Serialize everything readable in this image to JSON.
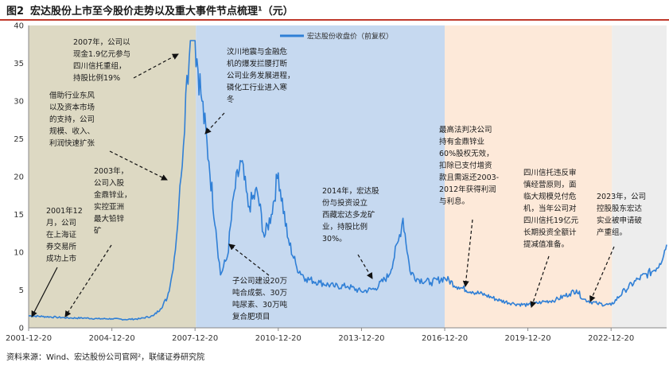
{
  "header": {
    "figure_label": "图2",
    "title": "宏达股份上市至今股价走势以及重大事件节点梳理¹（元）"
  },
  "source": "资料来源：Wind、宏达股份公司官网²，联储证券研究院",
  "chart_data": {
    "type": "line",
    "title": "宏达股份上市至今股价走势以及重大事件节点梳理¹（元）",
    "xlabel": "",
    "ylabel": "",
    "ylim": [
      0,
      40
    ],
    "yticks": [
      0,
      5,
      10,
      15,
      20,
      25,
      30,
      35,
      40
    ],
    "x_ticks": [
      "2001-12-20",
      "2004-12-20",
      "2007-12-20",
      "2010-12-20",
      "2013-12-20",
      "2016-12-20",
      "2019-12-20",
      "2022-12-20"
    ],
    "x_range": [
      "2001-12-20",
      "2024-12-20"
    ],
    "legend_position": "top-right",
    "grid": false,
    "series": [
      {
        "name": "宏达股份收盘价（前复权）",
        "color": "#2f7fd6",
        "x": [
          "2001-12-20",
          "2002-06-20",
          "2002-12-20",
          "2003-06-20",
          "2003-12-20",
          "2004-06-20",
          "2004-12-20",
          "2005-06-20",
          "2005-12-20",
          "2006-06-20",
          "2006-09-20",
          "2006-12-20",
          "2007-02-20",
          "2007-04-20",
          "2007-05-20",
          "2007-06-20",
          "2007-08-20",
          "2007-10-20",
          "2007-12-20",
          "2008-03-20",
          "2008-06-20",
          "2008-09-20",
          "2008-11-20",
          "2009-02-20",
          "2009-05-20",
          "2009-08-20",
          "2009-11-20",
          "2010-03-20",
          "2010-06-20",
          "2010-09-20",
          "2010-12-20",
          "2011-04-20",
          "2011-08-20",
          "2011-12-20",
          "2012-06-20",
          "2012-12-20",
          "2013-06-20",
          "2013-12-20",
          "2014-06-20",
          "2014-12-20",
          "2015-04-20",
          "2015-06-20",
          "2015-09-20",
          "2015-12-20",
          "2016-06-20",
          "2016-12-20",
          "2017-06-20",
          "2017-12-20",
          "2018-06-20",
          "2018-12-20",
          "2019-06-20",
          "2019-12-20",
          "2020-06-20",
          "2020-12-20",
          "2021-06-20",
          "2021-09-20",
          "2021-12-20",
          "2022-06-20",
          "2022-12-20",
          "2023-06-20",
          "2023-12-20",
          "2024-06-20",
          "2024-09-20",
          "2024-12-20"
        ],
        "values": [
          1.6,
          1.5,
          1.4,
          1.3,
          1.3,
          1.2,
          1.2,
          1.1,
          1.2,
          1.6,
          2.5,
          4.0,
          7.0,
          12.0,
          16.0,
          20.0,
          31.0,
          38.0,
          38.0,
          30.0,
          22.0,
          13.0,
          7.0,
          9.5,
          18.0,
          22.0,
          16.0,
          18.0,
          12.0,
          15.0,
          20.5,
          12.0,
          8.0,
          6.5,
          6.0,
          5.5,
          5.5,
          4.8,
          5.2,
          7.0,
          11.5,
          14.5,
          7.5,
          6.5,
          6.0,
          6.6,
          5.4,
          4.8,
          4.3,
          3.6,
          3.2,
          3.0,
          3.4,
          3.7,
          4.5,
          5.0,
          3.8,
          3.2,
          3.0,
          5.0,
          6.5,
          7.5,
          8.5,
          11.0
        ]
      }
    ],
    "shaded_periods": [
      {
        "from": "2001-12-20",
        "to": "2008-01-01",
        "color": "#ddd9c3"
      },
      {
        "from": "2008-01-01",
        "to": "2016-12-20",
        "color": "#c6d9f0"
      },
      {
        "from": "2016-12-20",
        "to": "2023-01-01",
        "color": "#fde9d9"
      },
      {
        "from": "2023-01-01",
        "to": "2024-12-20",
        "color": "#ededed"
      }
    ]
  },
  "annotations": [
    {
      "id": "a2001",
      "lines": [
        "2001年12",
        "月，公司",
        "在上海证",
        "券交易所",
        "成功上市"
      ]
    },
    {
      "id": "a2003",
      "lines": [
        "2003年，",
        "公司入股",
        "金鼎锌业，",
        "实控亚洲",
        "最大铅锌",
        "矿"
      ]
    },
    {
      "id": "aBoom",
      "lines": [
        "借助行业东风",
        "以及资本市场",
        "的支持，公司",
        "规模、收入、",
        "利润快速扩张"
      ]
    },
    {
      "id": "a2007",
      "lines": [
        "2007年，公司以",
        "现金1.9亿元参与",
        "四川信托重组，",
        "持股比例19%"
      ]
    },
    {
      "id": "aQuake",
      "lines": [
        "汶川地震与金融危",
        "机的爆发拦腰打断",
        "公司业务发展进程，",
        "磷化工行业进入寒",
        "冬"
      ]
    },
    {
      "id": "aSub",
      "lines": [
        "子公司建设20万",
        "吨合成氨、30万",
        "吨尿素、30万吨",
        "复合肥项目"
      ]
    },
    {
      "id": "a2014",
      "lines": [
        "2014年，宏达股",
        "份与投资设立",
        "西藏宏达多龙矿",
        "业，持股比例",
        "30%。"
      ]
    },
    {
      "id": "aCourt",
      "lines": [
        "最高法判决公司",
        "持有金鼎锌业",
        "60%股权无效，",
        "扣除已支付增资",
        "款且需返还2003-",
        "2012年获得利润",
        "与利息。"
      ]
    },
    {
      "id": "aTrust",
      "lines": [
        "四川信托违反审",
        "慎经营原则，面",
        "临大规模兑付危",
        "机，当年公司对",
        "四川信托19亿元",
        "长期投资全额计",
        "提减值准备。"
      ]
    },
    {
      "id": "a2023",
      "lines": [
        "2023年，公司",
        "控股股东宏达",
        "实业被申请破",
        "产重组。"
      ]
    }
  ]
}
